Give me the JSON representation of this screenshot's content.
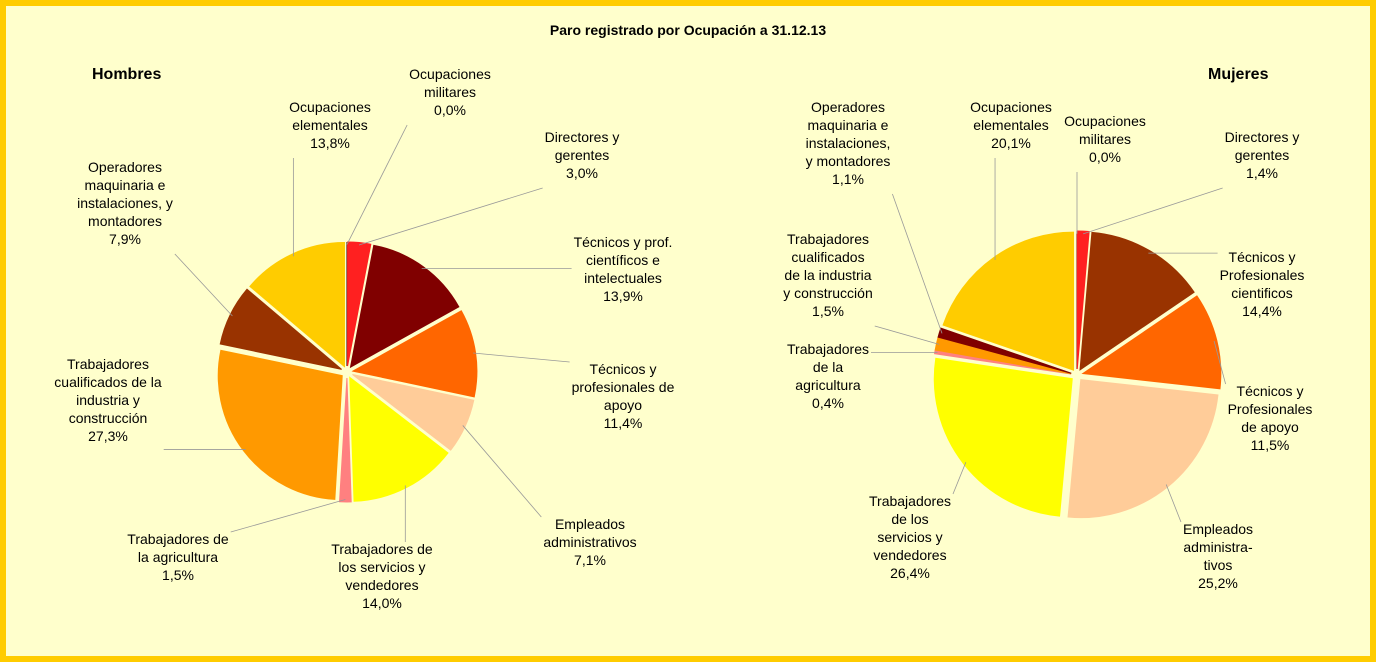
{
  "title": "Paro registrado por Ocupación a 31.12.13",
  "chart_data": [
    {
      "type": "pie",
      "title": "Hombres",
      "categories": [
        "Ocupaciones\nmilitares",
        "Directores y\ngerentes",
        "Técnicos y prof.\ncientíficos e\nintelectuales",
        "Técnicos y\nprofesionales de\napoyo",
        "Empleados\nadministrativos",
        "Trabajadores de\nlos servicios y\nvendedores",
        "Trabajadores de\nla agricultura",
        "Trabajadores\ncualificados de la\nindustria y\nconstrucción",
        "Operadores\nmaquinaria e\ninstalaciones, y\nmontadores",
        "Ocupaciones\nelementales"
      ],
      "values": [
        0.0,
        3.0,
        13.9,
        11.4,
        7.1,
        14.0,
        1.5,
        27.3,
        7.9,
        13.8
      ],
      "value_labels": [
        "0,0%",
        "3,0%",
        "13,9%",
        "11,4%",
        "7,1%",
        "14,0%",
        "1,5%",
        "27,3%",
        "7,9%",
        "13,8%"
      ],
      "colors": [
        "#1a0000",
        "#ff2020",
        "#800000",
        "#ff6600",
        "#ffcc99",
        "#ffff00",
        "#ff8080",
        "#ff9900",
        "#993300",
        "#ffcc00"
      ]
    },
    {
      "type": "pie",
      "title": "Mujeres",
      "categories": [
        "Ocupaciones\nmilitares",
        "Directores y\ngerentes",
        "Técnicos y\nProfesionales\ncientificos",
        "Técnicos y\nProfesionales\nde apoyo",
        "Empleados\nadministra-\ntivos",
        "Trabajadores\nde los\nservicios y\nvendedores",
        "Trabajadores\nde la\nagricultura",
        "Trabajadores\ncualificados\nde la industria\ny construcción",
        "Operadores\nmaquinaria e\ninstalaciones,\ny montadores",
        "Ocupaciones\nelementales"
      ],
      "values": [
        0.0,
        1.4,
        14.4,
        11.5,
        25.2,
        26.4,
        0.4,
        1.5,
        1.1,
        20.1
      ],
      "value_labels": [
        "0,0%",
        "1,4%",
        "14,4%",
        "11,5%",
        "25,2%",
        "26,4%",
        "0,4%",
        "1,5%",
        "1,1%",
        "20,1%"
      ],
      "colors": [
        "#1a0000",
        "#ff2020",
        "#993300",
        "#ff6600",
        "#ffcc99",
        "#ffff00",
        "#ff8080",
        "#ff9900",
        "#800000",
        "#ffcc00"
      ]
    }
  ]
}
